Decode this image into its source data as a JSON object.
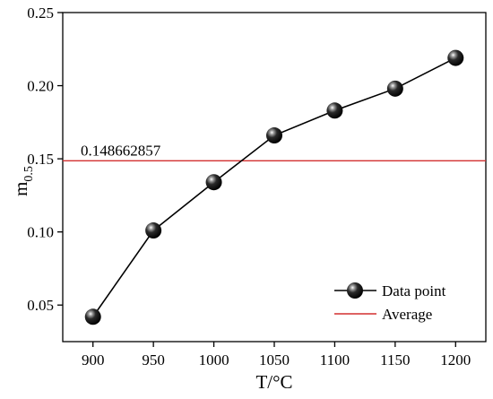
{
  "colors": {
    "series": "#000000",
    "average": "#d32f2f",
    "axis": "#000000"
  },
  "chart_data": {
    "type": "line",
    "title": "",
    "xlabel": "T/°C",
    "ylabel_main": "m",
    "ylabel_sub": "0.5",
    "xlim": [
      875,
      1225
    ],
    "ylim": [
      0.025,
      0.25
    ],
    "x_ticks": [
      900,
      950,
      1000,
      1050,
      1100,
      1150,
      1200
    ],
    "x_tick_labels": [
      "900",
      "950",
      "1000",
      "1050",
      "1100",
      "1150",
      "1200"
    ],
    "y_ticks": [
      0.05,
      0.1,
      0.15,
      0.2,
      0.25
    ],
    "y_tick_labels": [
      "0.05",
      "0.10",
      "0.15",
      "0.20",
      "0.25"
    ],
    "series": [
      {
        "name": "Data point",
        "x": [
          900,
          950,
          1000,
          1050,
          1100,
          1150,
          1200
        ],
        "y": [
          0.042,
          0.101,
          0.134,
          0.166,
          0.183,
          0.198,
          0.219
        ],
        "marker": "sphere",
        "color": "#000000"
      }
    ],
    "reference_lines": [
      {
        "name": "Average",
        "y": 0.148662857,
        "label": "0.148662857",
        "color": "#d32f2f"
      }
    ],
    "legend": {
      "position": "bottom-right",
      "entries": [
        "Data point",
        "Average"
      ]
    },
    "grid": false
  }
}
